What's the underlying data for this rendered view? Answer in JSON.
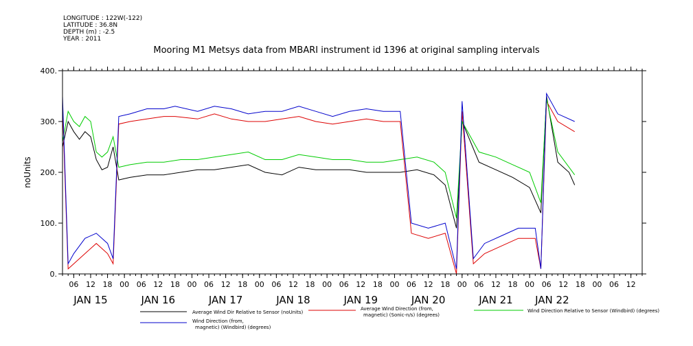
{
  "meta": {
    "longitude": "LONGITUDE : 122W(-122)",
    "latitude": "LATITUDE : 36.8N",
    "depth": "DEPTH (m) : -2.5",
    "year": "YEAR : 2011"
  },
  "colors": {
    "avg_dir_rel": "#000000",
    "avg_dir_mag": "#dd0000",
    "dir_rel_windbird": "#00cc00",
    "dir_windbird": "#0000cc"
  },
  "chart_data": {
    "type": "line",
    "title": "Mooring M1 Metsys data from MBARI instrument id 1396 at original sampling intervals",
    "ylabel": "noUnits",
    "ylim": [
      0,
      400
    ],
    "yticks": [
      0,
      100,
      200,
      300,
      400
    ],
    "ytick_labels": [
      "0.",
      "100.",
      "200.",
      "300.",
      "400."
    ],
    "xlim": [
      "2011-01-14T02:00",
      "2011-01-22T16:00"
    ],
    "hour_ticks": [
      {
        "t": "2011-01-14T06:00",
        "label": "06"
      },
      {
        "t": "2011-01-14T12:00",
        "label": "12"
      },
      {
        "t": "2011-01-14T18:00",
        "label": "18"
      },
      {
        "t": "2011-01-15T00:00",
        "label": "00"
      },
      {
        "t": "2011-01-15T06:00",
        "label": "06"
      },
      {
        "t": "2011-01-15T12:00",
        "label": "12"
      },
      {
        "t": "2011-01-15T18:00",
        "label": "18"
      },
      {
        "t": "2011-01-16T00:00",
        "label": "00"
      },
      {
        "t": "2011-01-16T06:00",
        "label": "06"
      },
      {
        "t": "2011-01-16T12:00",
        "label": "12"
      },
      {
        "t": "2011-01-16T18:00",
        "label": "18"
      },
      {
        "t": "2011-01-17T00:00",
        "label": "00"
      },
      {
        "t": "2011-01-17T06:00",
        "label": "06"
      },
      {
        "t": "2011-01-17T12:00",
        "label": "12"
      },
      {
        "t": "2011-01-17T18:00",
        "label": "18"
      },
      {
        "t": "2011-01-18T00:00",
        "label": "00"
      },
      {
        "t": "2011-01-18T06:00",
        "label": "06"
      },
      {
        "t": "2011-01-18T12:00",
        "label": "12"
      },
      {
        "t": "2011-01-18T18:00",
        "label": "18"
      },
      {
        "t": "2011-01-19T00:00",
        "label": "00"
      },
      {
        "t": "2011-01-19T06:00",
        "label": "06"
      },
      {
        "t": "2011-01-19T12:00",
        "label": "12"
      },
      {
        "t": "2011-01-19T18:00",
        "label": "18"
      },
      {
        "t": "2011-01-20T00:00",
        "label": "00"
      },
      {
        "t": "2011-01-20T06:00",
        "label": "06"
      },
      {
        "t": "2011-01-20T12:00",
        "label": "12"
      },
      {
        "t": "2011-01-20T18:00",
        "label": "18"
      },
      {
        "t": "2011-01-21T00:00",
        "label": "00"
      },
      {
        "t": "2011-01-21T06:00",
        "label": "06"
      },
      {
        "t": "2011-01-21T12:00",
        "label": "12"
      },
      {
        "t": "2011-01-21T18:00",
        "label": "18"
      },
      {
        "t": "2011-01-22T00:00",
        "label": "00"
      },
      {
        "t": "2011-01-22T06:00",
        "label": "06"
      },
      {
        "t": "2011-01-22T12:00",
        "label": "12"
      }
    ],
    "day_labels": [
      {
        "t": "2011-01-14T12:00",
        "label": "JAN 15"
      },
      {
        "t": "2011-01-15T12:00",
        "label": "JAN 16"
      },
      {
        "t": "2011-01-16T12:00",
        "label": "JAN 17"
      },
      {
        "t": "2011-01-17T12:00",
        "label": "JAN 18"
      },
      {
        "t": "2011-01-18T12:00",
        "label": "JAN 19"
      },
      {
        "t": "2011-01-19T12:00",
        "label": "JAN 20"
      },
      {
        "t": "2011-01-20T12:00",
        "label": "JAN 21"
      },
      {
        "t": "2011-01-21T08:00",
        "label": "JAN 22"
      }
    ],
    "series": [
      {
        "name": "Average Wind Dir Relative to Sensor (noUnits)",
        "color": "#000000",
        "points": [
          [
            "2011-01-14T02:00",
            250
          ],
          [
            "2011-01-14T04:00",
            300
          ],
          [
            "2011-01-14T06:00",
            280
          ],
          [
            "2011-01-14T08:00",
            265
          ],
          [
            "2011-01-14T10:00",
            280
          ],
          [
            "2011-01-14T12:00",
            270
          ],
          [
            "2011-01-14T14:00",
            225
          ],
          [
            "2011-01-14T16:00",
            205
          ],
          [
            "2011-01-14T18:00",
            210
          ],
          [
            "2011-01-14T20:00",
            250
          ],
          [
            "2011-01-14T22:00",
            185
          ],
          [
            "2011-01-15T02:00",
            190
          ],
          [
            "2011-01-15T08:00",
            195
          ],
          [
            "2011-01-15T14:00",
            195
          ],
          [
            "2011-01-15T20:00",
            200
          ],
          [
            "2011-01-16T02:00",
            205
          ],
          [
            "2011-01-16T08:00",
            205
          ],
          [
            "2011-01-16T14:00",
            210
          ],
          [
            "2011-01-16T20:00",
            215
          ],
          [
            "2011-01-17T02:00",
            200
          ],
          [
            "2011-01-17T08:00",
            195
          ],
          [
            "2011-01-17T14:00",
            210
          ],
          [
            "2011-01-17T20:00",
            205
          ],
          [
            "2011-01-18T02:00",
            205
          ],
          [
            "2011-01-18T08:00",
            205
          ],
          [
            "2011-01-18T14:00",
            200
          ],
          [
            "2011-01-18T20:00",
            200
          ],
          [
            "2011-01-19T02:00",
            200
          ],
          [
            "2011-01-19T08:00",
            205
          ],
          [
            "2011-01-19T14:00",
            195
          ],
          [
            "2011-01-19T18:00",
            175
          ],
          [
            "2011-01-19T22:00",
            90
          ],
          [
            "2011-01-20T00:00",
            300
          ],
          [
            "2011-01-20T06:00",
            220
          ],
          [
            "2011-01-20T12:00",
            205
          ],
          [
            "2011-01-20T18:00",
            190
          ],
          [
            "2011-01-21T00:00",
            170
          ],
          [
            "2011-01-21T04:00",
            120
          ],
          [
            "2011-01-21T06:00",
            350
          ],
          [
            "2011-01-21T10:00",
            220
          ],
          [
            "2011-01-21T14:00",
            200
          ],
          [
            "2011-01-21T16:00",
            175
          ]
        ]
      },
      {
        "name": "Average Wind Direction (from, magnetic) (Sonic-n/s) (degrees)",
        "color": "#dd0000",
        "points": [
          [
            "2011-01-14T02:00",
            330
          ],
          [
            "2011-01-14T04:00",
            10
          ],
          [
            "2011-01-14T06:00",
            20
          ],
          [
            "2011-01-14T10:00",
            40
          ],
          [
            "2011-01-14T14:00",
            60
          ],
          [
            "2011-01-14T18:00",
            40
          ],
          [
            "2011-01-14T20:00",
            20
          ],
          [
            "2011-01-14T22:00",
            295
          ],
          [
            "2011-01-15T02:00",
            300
          ],
          [
            "2011-01-15T08:00",
            305
          ],
          [
            "2011-01-15T14:00",
            310
          ],
          [
            "2011-01-15T18:00",
            310
          ],
          [
            "2011-01-16T02:00",
            305
          ],
          [
            "2011-01-16T08:00",
            315
          ],
          [
            "2011-01-16T14:00",
            305
          ],
          [
            "2011-01-16T20:00",
            300
          ],
          [
            "2011-01-17T02:00",
            300
          ],
          [
            "2011-01-17T08:00",
            305
          ],
          [
            "2011-01-17T14:00",
            310
          ],
          [
            "2011-01-17T20:00",
            300
          ],
          [
            "2011-01-18T02:00",
            295
          ],
          [
            "2011-01-18T08:00",
            300
          ],
          [
            "2011-01-18T14:00",
            305
          ],
          [
            "2011-01-18T20:00",
            300
          ],
          [
            "2011-01-19T02:00",
            300
          ],
          [
            "2011-01-19T06:00",
            80
          ],
          [
            "2011-01-19T12:00",
            70
          ],
          [
            "2011-01-19T18:00",
            80
          ],
          [
            "2011-01-19T22:00",
            0
          ],
          [
            "2011-01-20T00:00",
            320
          ],
          [
            "2011-01-20T04:00",
            20
          ],
          [
            "2011-01-20T08:00",
            40
          ],
          [
            "2011-01-20T14:00",
            55
          ],
          [
            "2011-01-20T20:00",
            70
          ],
          [
            "2011-01-21T02:00",
            70
          ],
          [
            "2011-01-21T04:00",
            10
          ],
          [
            "2011-01-21T06:00",
            340
          ],
          [
            "2011-01-21T10:00",
            300
          ],
          [
            "2011-01-21T16:00",
            280
          ]
        ]
      },
      {
        "name": "Wind Direction Relative to Sensor (Windbird) (degrees)",
        "color": "#00cc00",
        "points": [
          [
            "2011-01-14T02:00",
            260
          ],
          [
            "2011-01-14T04:00",
            320
          ],
          [
            "2011-01-14T06:00",
            300
          ],
          [
            "2011-01-14T08:00",
            290
          ],
          [
            "2011-01-14T10:00",
            310
          ],
          [
            "2011-01-14T12:00",
            300
          ],
          [
            "2011-01-14T14:00",
            240
          ],
          [
            "2011-01-14T16:00",
            230
          ],
          [
            "2011-01-14T18:00",
            240
          ],
          [
            "2011-01-14T20:00",
            270
          ],
          [
            "2011-01-14T22:00",
            210
          ],
          [
            "2011-01-15T02:00",
            215
          ],
          [
            "2011-01-15T08:00",
            220
          ],
          [
            "2011-01-15T14:00",
            220
          ],
          [
            "2011-01-15T20:00",
            225
          ],
          [
            "2011-01-16T02:00",
            225
          ],
          [
            "2011-01-16T08:00",
            230
          ],
          [
            "2011-01-16T14:00",
            235
          ],
          [
            "2011-01-16T20:00",
            240
          ],
          [
            "2011-01-17T02:00",
            225
          ],
          [
            "2011-01-17T08:00",
            225
          ],
          [
            "2011-01-17T14:00",
            235
          ],
          [
            "2011-01-17T20:00",
            230
          ],
          [
            "2011-01-18T02:00",
            225
          ],
          [
            "2011-01-18T08:00",
            225
          ],
          [
            "2011-01-18T14:00",
            220
          ],
          [
            "2011-01-18T20:00",
            220
          ],
          [
            "2011-01-19T02:00",
            225
          ],
          [
            "2011-01-19T08:00",
            230
          ],
          [
            "2011-01-19T14:00",
            220
          ],
          [
            "2011-01-19T18:00",
            200
          ],
          [
            "2011-01-19T22:00",
            110
          ],
          [
            "2011-01-20T00:00",
            300
          ],
          [
            "2011-01-20T06:00",
            240
          ],
          [
            "2011-01-20T12:00",
            230
          ],
          [
            "2011-01-20T18:00",
            215
          ],
          [
            "2011-01-21T00:00",
            200
          ],
          [
            "2011-01-21T04:00",
            140
          ],
          [
            "2011-01-21T06:00",
            345
          ],
          [
            "2011-01-21T10:00",
            240
          ],
          [
            "2011-01-21T14:00",
            210
          ],
          [
            "2011-01-21T16:00",
            195
          ]
        ]
      },
      {
        "name": "Wind Direction (from, magnetic) (Windbird) (degrees)",
        "color": "#0000cc",
        "points": [
          [
            "2011-01-14T02:00",
            350
          ],
          [
            "2011-01-14T04:00",
            20
          ],
          [
            "2011-01-14T06:00",
            40
          ],
          [
            "2011-01-14T10:00",
            70
          ],
          [
            "2011-01-14T14:00",
            80
          ],
          [
            "2011-01-14T18:00",
            60
          ],
          [
            "2011-01-14T20:00",
            30
          ],
          [
            "2011-01-14T22:00",
            310
          ],
          [
            "2011-01-15T02:00",
            315
          ],
          [
            "2011-01-15T08:00",
            325
          ],
          [
            "2011-01-15T14:00",
            325
          ],
          [
            "2011-01-15T18:00",
            330
          ],
          [
            "2011-01-16T02:00",
            320
          ],
          [
            "2011-01-16T08:00",
            330
          ],
          [
            "2011-01-16T14:00",
            325
          ],
          [
            "2011-01-16T20:00",
            315
          ],
          [
            "2011-01-17T02:00",
            320
          ],
          [
            "2011-01-17T08:00",
            320
          ],
          [
            "2011-01-17T14:00",
            330
          ],
          [
            "2011-01-17T20:00",
            320
          ],
          [
            "2011-01-18T02:00",
            310
          ],
          [
            "2011-01-18T08:00",
            320
          ],
          [
            "2011-01-18T14:00",
            325
          ],
          [
            "2011-01-18T20:00",
            320
          ],
          [
            "2011-01-19T02:00",
            320
          ],
          [
            "2011-01-19T06:00",
            100
          ],
          [
            "2011-01-19T12:00",
            90
          ],
          [
            "2011-01-19T18:00",
            100
          ],
          [
            "2011-01-19T22:00",
            10
          ],
          [
            "2011-01-20T00:00",
            340
          ],
          [
            "2011-01-20T04:00",
            30
          ],
          [
            "2011-01-20T08:00",
            60
          ],
          [
            "2011-01-20T14:00",
            75
          ],
          [
            "2011-01-20T20:00",
            90
          ],
          [
            "2011-01-21T02:00",
            90
          ],
          [
            "2011-01-21T04:00",
            10
          ],
          [
            "2011-01-21T06:00",
            355
          ],
          [
            "2011-01-21T10:00",
            315
          ],
          [
            "2011-01-21T16:00",
            300
          ]
        ]
      }
    ],
    "legend_placement": "bottom"
  },
  "legend": [
    {
      "label_lines": [
        "Average Wind Dir Relative to Sensor (noUnits)"
      ],
      "color": "#000000"
    },
    {
      "label_lines": [
        "Average Wind Direction (from,",
        "magnetic) (Sonic-n/s) (degrees)"
      ],
      "color": "#dd0000"
    },
    {
      "label_lines": [
        "Wind Direction Relative to Sensor (Windbird) (degrees)"
      ],
      "color": "#00cc00"
    },
    {
      "label_lines": [
        "Wind Direction (from,",
        "magnetic) (Windbird) (degrees)"
      ],
      "color": "#0000cc"
    }
  ]
}
